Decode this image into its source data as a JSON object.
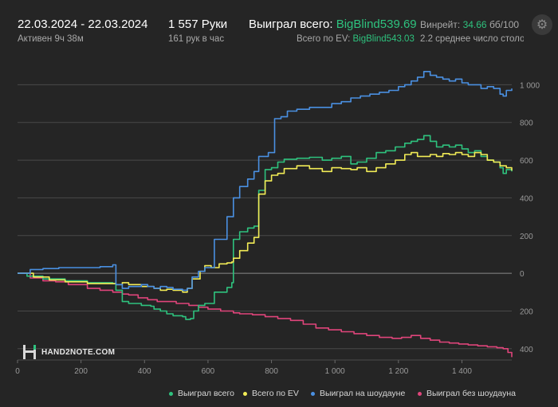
{
  "header": {
    "date_range": "22.03.2024 - 22.03.2024",
    "active": "Активен 9ч 38м",
    "hands": "1 557 Руки",
    "hands_per_hour": "161 рук в час",
    "won_label": "Выиграл всего:",
    "won_value": "BigBlind539.69",
    "ev_label": "Всего по EV:",
    "ev_value": "BigBlind543.03",
    "winrate_label": "Винрейт:",
    "winrate_value": "34.66",
    "winrate_unit": "бб/100",
    "avg_tables": "2.2 среднее число столо"
  },
  "logo_text": "HAND2NOTE.COM",
  "colors": {
    "won": "#2ec27e",
    "ev": "#f2ec56",
    "showdown": "#4a90e2",
    "nonshowdown": "#e0457b",
    "accent": "#2ec27e"
  },
  "chart_data": {
    "type": "line",
    "xlim": [
      0,
      1557
    ],
    "ylim": [
      -460,
      1120
    ],
    "x_ticks": [
      0,
      200,
      400,
      600,
      800,
      1000,
      1200,
      1400
    ],
    "x_tick_labels": [
      "0",
      "200",
      "400",
      "600",
      "800",
      "1 000",
      "1 200",
      "1 400"
    ],
    "y_ticks": [
      -400,
      -200,
      0,
      200,
      400,
      600,
      800,
      1000
    ],
    "y_tick_labels": [
      "400",
      "200",
      "0",
      "200",
      "400",
      "600",
      "800",
      "1 000"
    ],
    "grid": true,
    "legend_position": "bottom",
    "series": [
      {
        "name": "Выиграл всего",
        "color_key": "won",
        "points": [
          [
            0,
            0
          ],
          [
            30,
            -15
          ],
          [
            80,
            -30
          ],
          [
            150,
            -40
          ],
          [
            220,
            -50
          ],
          [
            300,
            -55
          ],
          [
            310,
            -90
          ],
          [
            330,
            -150
          ],
          [
            350,
            -160
          ],
          [
            390,
            -170
          ],
          [
            420,
            -175
          ],
          [
            430,
            -190
          ],
          [
            450,
            -200
          ],
          [
            470,
            -215
          ],
          [
            490,
            -225
          ],
          [
            520,
            -230
          ],
          [
            530,
            -245
          ],
          [
            545,
            -240
          ],
          [
            555,
            -200
          ],
          [
            570,
            -170
          ],
          [
            590,
            -160
          ],
          [
            620,
            -100
          ],
          [
            660,
            -75
          ],
          [
            675,
            -50
          ],
          [
            680,
            180
          ],
          [
            700,
            220
          ],
          [
            725,
            240
          ],
          [
            745,
            250
          ],
          [
            760,
            440
          ],
          [
            780,
            550
          ],
          [
            800,
            560
          ],
          [
            820,
            590
          ],
          [
            840,
            605
          ],
          [
            860,
            605
          ],
          [
            880,
            610
          ],
          [
            920,
            615
          ],
          [
            960,
            600
          ],
          [
            990,
            610
          ],
          [
            1020,
            620
          ],
          [
            1050,
            580
          ],
          [
            1070,
            590
          ],
          [
            1100,
            610
          ],
          [
            1130,
            640
          ],
          [
            1160,
            650
          ],
          [
            1190,
            670
          ],
          [
            1220,
            690
          ],
          [
            1240,
            700
          ],
          [
            1260,
            710
          ],
          [
            1280,
            730
          ],
          [
            1300,
            700
          ],
          [
            1320,
            670
          ],
          [
            1340,
            680
          ],
          [
            1360,
            670
          ],
          [
            1380,
            680
          ],
          [
            1400,
            660
          ],
          [
            1420,
            640
          ],
          [
            1440,
            650
          ],
          [
            1460,
            620
          ],
          [
            1480,
            600
          ],
          [
            1500,
            590
          ],
          [
            1520,
            560
          ],
          [
            1530,
            530
          ],
          [
            1540,
            550
          ],
          [
            1557,
            540
          ]
        ]
      },
      {
        "name": "Всего по EV",
        "color_key": "ev",
        "points": [
          [
            0,
            0
          ],
          [
            50,
            -20
          ],
          [
            100,
            -35
          ],
          [
            150,
            -45
          ],
          [
            220,
            -55
          ],
          [
            300,
            -55
          ],
          [
            310,
            -60
          ],
          [
            330,
            -50
          ],
          [
            350,
            -60
          ],
          [
            390,
            -70
          ],
          [
            420,
            -70
          ],
          [
            430,
            -80
          ],
          [
            450,
            -90
          ],
          [
            470,
            -85
          ],
          [
            490,
            -90
          ],
          [
            520,
            -100
          ],
          [
            535,
            -80
          ],
          [
            550,
            -30
          ],
          [
            575,
            10
          ],
          [
            590,
            40
          ],
          [
            610,
            30
          ],
          [
            635,
            50
          ],
          [
            660,
            55
          ],
          [
            675,
            60
          ],
          [
            680,
            80
          ],
          [
            700,
            120
          ],
          [
            725,
            160
          ],
          [
            745,
            190
          ],
          [
            760,
            420
          ],
          [
            780,
            490
          ],
          [
            800,
            520
          ],
          [
            820,
            530
          ],
          [
            840,
            555
          ],
          [
            880,
            570
          ],
          [
            920,
            555
          ],
          [
            960,
            540
          ],
          [
            990,
            560
          ],
          [
            1020,
            555
          ],
          [
            1050,
            550
          ],
          [
            1070,
            560
          ],
          [
            1100,
            540
          ],
          [
            1130,
            560
          ],
          [
            1160,
            580
          ],
          [
            1190,
            600
          ],
          [
            1220,
            630
          ],
          [
            1240,
            640
          ],
          [
            1260,
            620
          ],
          [
            1280,
            620
          ],
          [
            1300,
            630
          ],
          [
            1320,
            620
          ],
          [
            1340,
            635
          ],
          [
            1360,
            630
          ],
          [
            1380,
            640
          ],
          [
            1400,
            630
          ],
          [
            1420,
            620
          ],
          [
            1440,
            640
          ],
          [
            1460,
            630
          ],
          [
            1480,
            600
          ],
          [
            1500,
            590
          ],
          [
            1520,
            570
          ],
          [
            1540,
            560
          ],
          [
            1557,
            545
          ]
        ]
      },
      {
        "name": "Выиграл на шоудауне",
        "color_key": "showdown",
        "points": [
          [
            0,
            0
          ],
          [
            40,
            20
          ],
          [
            80,
            25
          ],
          [
            130,
            30
          ],
          [
            200,
            30
          ],
          [
            260,
            35
          ],
          [
            300,
            45
          ],
          [
            310,
            -60
          ],
          [
            330,
            -80
          ],
          [
            350,
            -70
          ],
          [
            390,
            -60
          ],
          [
            410,
            -70
          ],
          [
            430,
            -80
          ],
          [
            450,
            -70
          ],
          [
            470,
            -75
          ],
          [
            490,
            -85
          ],
          [
            520,
            -90
          ],
          [
            535,
            -80
          ],
          [
            550,
            -20
          ],
          [
            570,
            10
          ],
          [
            590,
            30
          ],
          [
            620,
            180
          ],
          [
            660,
            300
          ],
          [
            680,
            400
          ],
          [
            700,
            460
          ],
          [
            725,
            500
          ],
          [
            745,
            540
          ],
          [
            760,
            620
          ],
          [
            790,
            640
          ],
          [
            810,
            820
          ],
          [
            830,
            830
          ],
          [
            850,
            860
          ],
          [
            880,
            870
          ],
          [
            920,
            880
          ],
          [
            960,
            880
          ],
          [
            990,
            900
          ],
          [
            1020,
            910
          ],
          [
            1050,
            930
          ],
          [
            1080,
            940
          ],
          [
            1110,
            950
          ],
          [
            1140,
            960
          ],
          [
            1170,
            970
          ],
          [
            1200,
            990
          ],
          [
            1220,
            1000
          ],
          [
            1240,
            1020
          ],
          [
            1260,
            1040
          ],
          [
            1280,
            1070
          ],
          [
            1300,
            1050
          ],
          [
            1320,
            1040
          ],
          [
            1340,
            1030
          ],
          [
            1360,
            1020
          ],
          [
            1380,
            1030
          ],
          [
            1400,
            1010
          ],
          [
            1420,
            1000
          ],
          [
            1440,
            1000
          ],
          [
            1460,
            980
          ],
          [
            1480,
            990
          ],
          [
            1500,
            980
          ],
          [
            1520,
            950
          ],
          [
            1530,
            940
          ],
          [
            1540,
            970
          ],
          [
            1557,
            980
          ]
        ]
      },
      {
        "name": "Выиграл без шоудауна",
        "color_key": "nonshowdown",
        "points": [
          [
            0,
            0
          ],
          [
            40,
            -25
          ],
          [
            80,
            -40
          ],
          [
            120,
            -45
          ],
          [
            160,
            -60
          ],
          [
            220,
            -80
          ],
          [
            260,
            -90
          ],
          [
            300,
            -100
          ],
          [
            330,
            -110
          ],
          [
            350,
            -115
          ],
          [
            380,
            -130
          ],
          [
            410,
            -140
          ],
          [
            440,
            -150
          ],
          [
            470,
            -150
          ],
          [
            500,
            -160
          ],
          [
            540,
            -170
          ],
          [
            570,
            -180
          ],
          [
            600,
            -190
          ],
          [
            640,
            -200
          ],
          [
            680,
            -210
          ],
          [
            700,
            -215
          ],
          [
            740,
            -220
          ],
          [
            780,
            -230
          ],
          [
            820,
            -240
          ],
          [
            860,
            -250
          ],
          [
            900,
            -270
          ],
          [
            940,
            -290
          ],
          [
            980,
            -300
          ],
          [
            1020,
            -310
          ],
          [
            1060,
            -320
          ],
          [
            1100,
            -330
          ],
          [
            1140,
            -340
          ],
          [
            1180,
            -345
          ],
          [
            1210,
            -340
          ],
          [
            1240,
            -330
          ],
          [
            1270,
            -345
          ],
          [
            1300,
            -355
          ],
          [
            1330,
            -365
          ],
          [
            1360,
            -370
          ],
          [
            1390,
            -375
          ],
          [
            1420,
            -380
          ],
          [
            1450,
            -385
          ],
          [
            1480,
            -390
          ],
          [
            1510,
            -395
          ],
          [
            1530,
            -400
          ],
          [
            1545,
            -420
          ],
          [
            1557,
            -445
          ]
        ]
      }
    ]
  }
}
